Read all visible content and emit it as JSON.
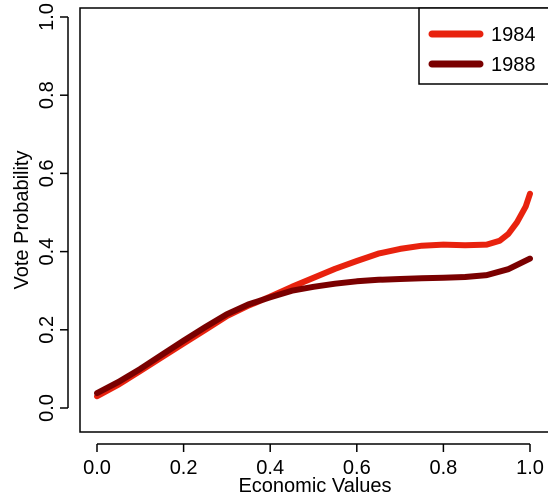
{
  "chart_data": {
    "type": "line",
    "title": "",
    "xlabel": "Economic Values",
    "ylabel": "Vote Probability",
    "xlim": [
      0,
      1
    ],
    "ylim": [
      0,
      1
    ],
    "xticks": [
      "0.0",
      "0.2",
      "0.4",
      "0.6",
      "0.8",
      "1.0"
    ],
    "yticks": [
      "0.0",
      "0.2",
      "0.4",
      "0.6",
      "0.8",
      "1.0"
    ],
    "grid": false,
    "legend_position": "top-right",
    "series": [
      {
        "name": "1984",
        "color": "#e8220e",
        "x": [
          0.0,
          0.05,
          0.1,
          0.15,
          0.2,
          0.25,
          0.3,
          0.35,
          0.4,
          0.45,
          0.5,
          0.55,
          0.6,
          0.65,
          0.7,
          0.75,
          0.8,
          0.85,
          0.9,
          0.93,
          0.95,
          0.97,
          0.99,
          1.0
        ],
        "y": [
          0.03,
          0.06,
          0.095,
          0.13,
          0.165,
          0.2,
          0.235,
          0.262,
          0.285,
          0.31,
          0.333,
          0.356,
          0.376,
          0.395,
          0.407,
          0.415,
          0.418,
          0.416,
          0.418,
          0.428,
          0.445,
          0.475,
          0.515,
          0.548
        ]
      },
      {
        "name": "1988",
        "color": "#7a0000",
        "x": [
          0.0,
          0.05,
          0.1,
          0.15,
          0.2,
          0.25,
          0.3,
          0.35,
          0.4,
          0.45,
          0.5,
          0.55,
          0.6,
          0.65,
          0.7,
          0.75,
          0.8,
          0.85,
          0.9,
          0.95,
          1.0
        ],
        "y": [
          0.038,
          0.067,
          0.1,
          0.136,
          0.172,
          0.207,
          0.24,
          0.265,
          0.283,
          0.3,
          0.31,
          0.318,
          0.324,
          0.328,
          0.33,
          0.332,
          0.333,
          0.335,
          0.34,
          0.355,
          0.382
        ]
      }
    ]
  }
}
